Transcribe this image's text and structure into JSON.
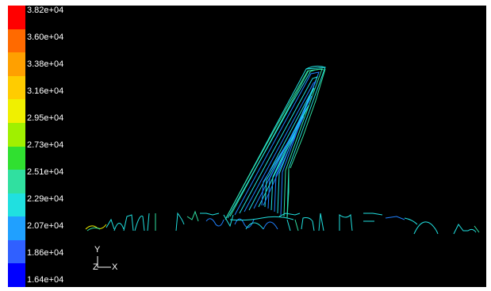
{
  "colorbar": {
    "labels": [
      "3.82e+04",
      "3.60e+04",
      "3.38e+04",
      "3.16e+04",
      "2.95e+04",
      "2.73e+04",
      "2.51e+04",
      "2.29e+04",
      "2.07e+04",
      "1.86e+04",
      "1.64e+04"
    ],
    "colors": [
      "#ff0000",
      "#ff6a00",
      "#ffa000",
      "#ffcc00",
      "#f0f000",
      "#a0f000",
      "#30e030",
      "#30e0a0",
      "#20e0e0",
      "#20a0ff",
      "#3060ff",
      "#0000ff"
    ]
  },
  "axes": {
    "y_label": "Y",
    "x_label": "X",
    "z_label": "Z"
  },
  "colors": {
    "background": "#000000",
    "contour_cyan": "#20e0e0",
    "contour_green": "#30e0a0",
    "contour_blue": "#2080ff",
    "contour_yellow": "#f0f000"
  }
}
